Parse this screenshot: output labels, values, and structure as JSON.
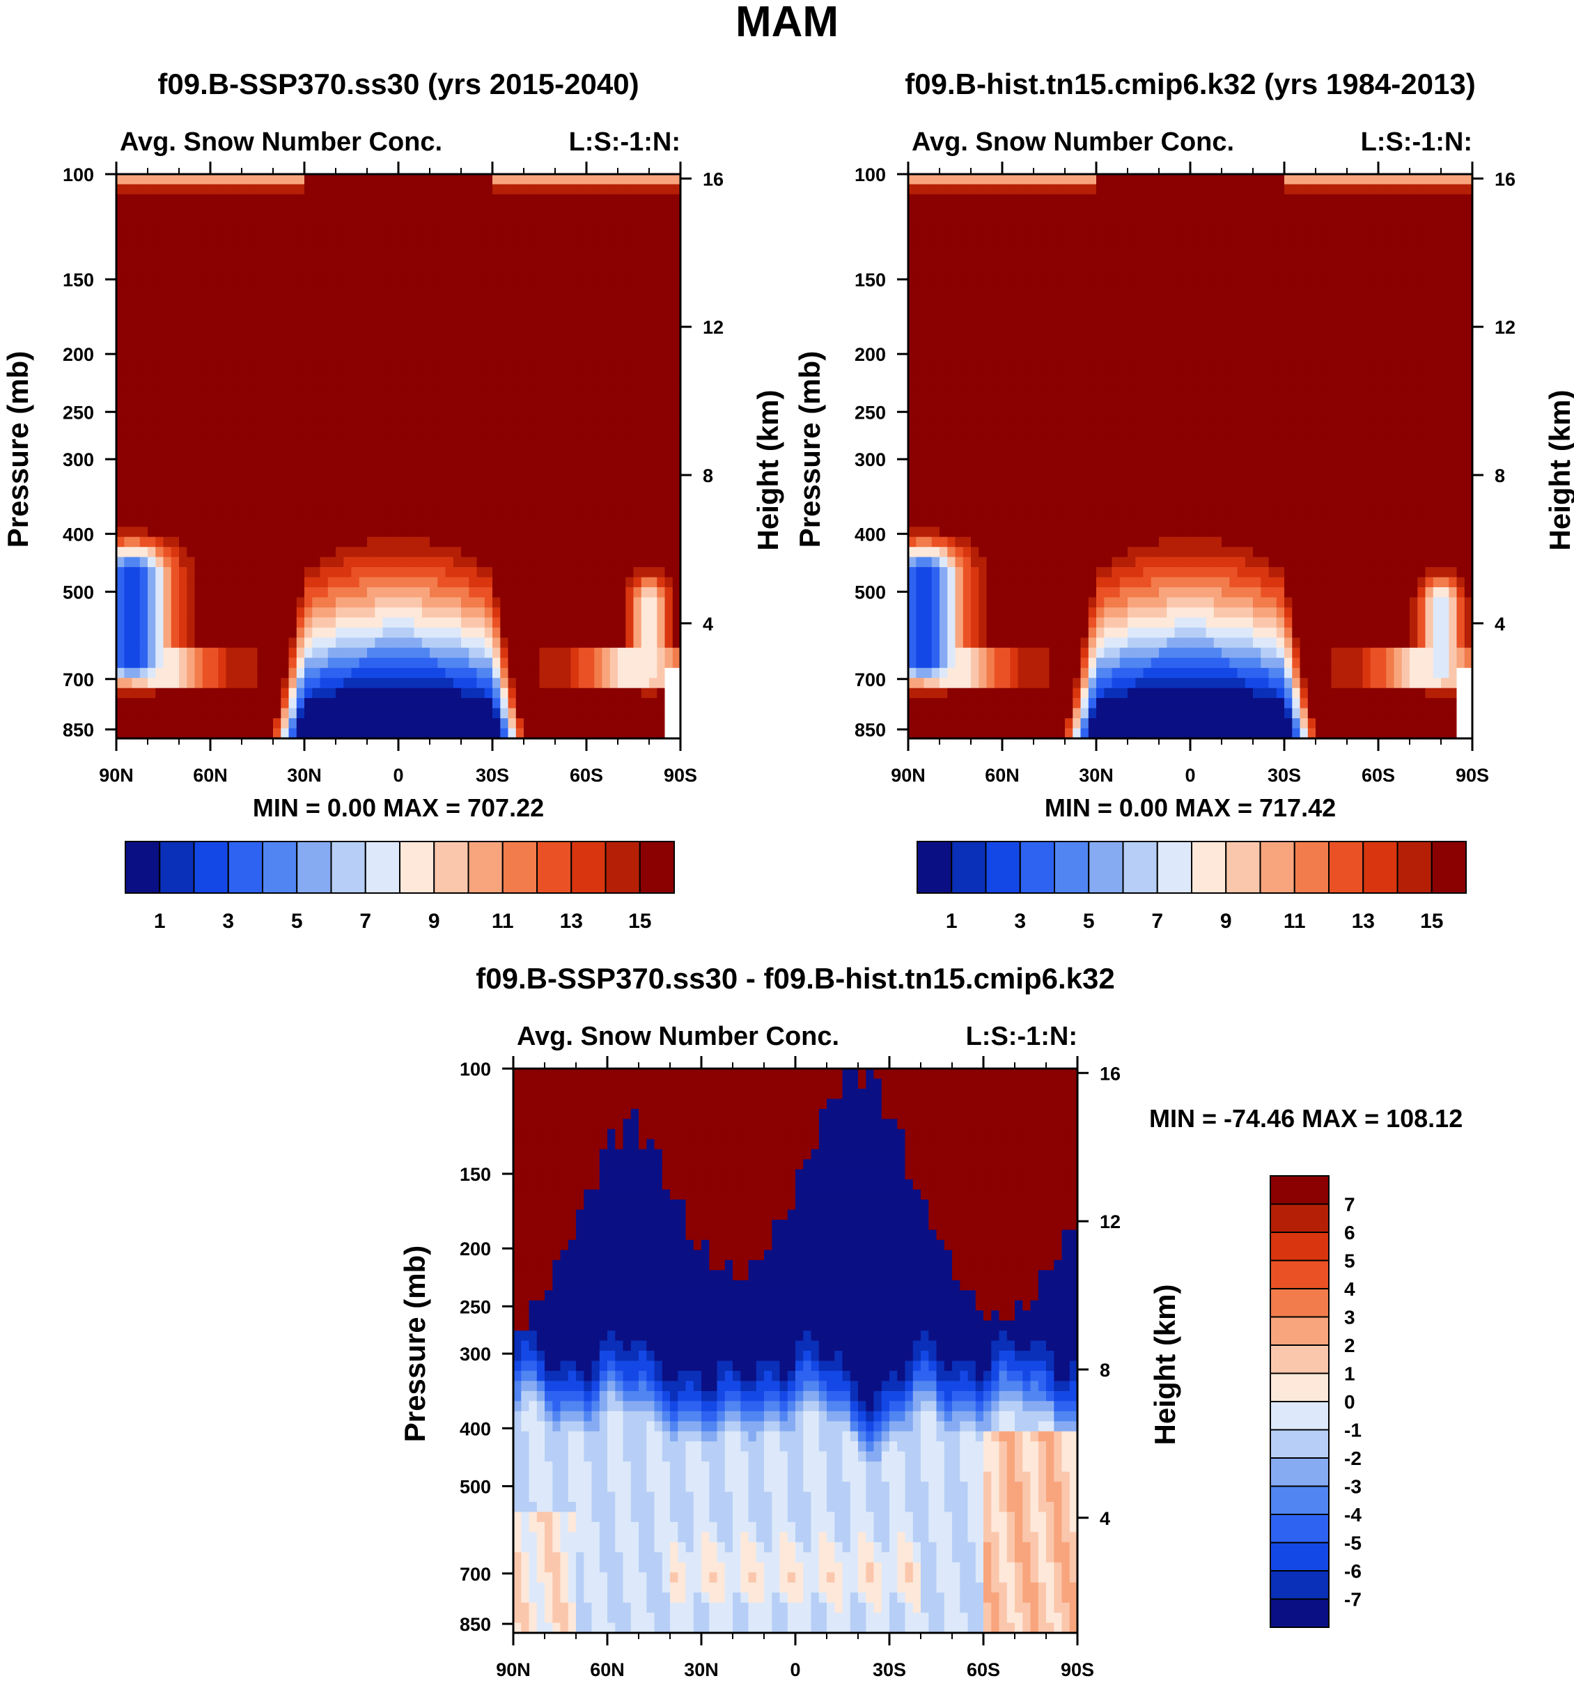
{
  "figure": {
    "title": "MAM"
  },
  "chart_data": [
    {
      "type": "heatmap",
      "title": "f09.B-SSP370.ss30 (yrs 2015-2040)",
      "subtitle_left": "Avg. Snow Number Conc.",
      "subtitle_right": "L:S:-1:N:",
      "xlabel": "",
      "ylabel": "Pressure (mb)",
      "y2label": "Height (km)",
      "x_ticks": [
        "90N",
        "60N",
        "30N",
        "0",
        "30S",
        "60S",
        "90S"
      ],
      "y_ticks": [
        100,
        150,
        200,
        250,
        300,
        400,
        500,
        700,
        850
      ],
      "y2_ticks": [
        16,
        12,
        8,
        4
      ],
      "stats": "MIN =   0.00  MAX = 707.22",
      "colorbar_ticks": [
        "1",
        "3",
        "5",
        "7",
        "9",
        "11",
        "13",
        "15"
      ],
      "levels": [
        1,
        3,
        5,
        7,
        9,
        11,
        13,
        15
      ]
    },
    {
      "type": "heatmap",
      "title": "f09.B-hist.tn15.cmip6.k32 (yrs 1984-2013)",
      "subtitle_left": "Avg. Snow Number Conc.",
      "subtitle_right": "L:S:-1:N:",
      "xlabel": "",
      "ylabel": "Pressure (mb)",
      "y2label": "Height (km)",
      "x_ticks": [
        "90N",
        "60N",
        "30N",
        "0",
        "30S",
        "60S",
        "90S"
      ],
      "y_ticks": [
        100,
        150,
        200,
        250,
        300,
        400,
        500,
        700,
        850
      ],
      "y2_ticks": [
        16,
        12,
        8,
        4
      ],
      "stats": "MIN =   0.00  MAX = 717.42",
      "colorbar_ticks": [
        "1",
        "3",
        "5",
        "7",
        "9",
        "11",
        "13",
        "15"
      ],
      "levels": [
        1,
        3,
        5,
        7,
        9,
        11,
        13,
        15
      ]
    },
    {
      "type": "heatmap",
      "title": "f09.B-SSP370.ss30 - f09.B-hist.tn15.cmip6.k32",
      "subtitle_left": "Avg. Snow Number Conc.",
      "subtitle_right": "L:S:-1:N:",
      "xlabel": "",
      "ylabel": "Pressure (mb)",
      "y2label": "Height (km)",
      "x_ticks": [
        "90N",
        "60N",
        "30N",
        "0",
        "30S",
        "60S",
        "90S"
      ],
      "y_ticks": [
        100,
        150,
        200,
        250,
        300,
        400,
        500,
        700,
        850
      ],
      "y2_ticks": [
        16,
        12,
        8,
        4
      ],
      "stats": "MIN = -74.46  MAX = 108.12",
      "colorbar_ticks": [
        "7",
        "6",
        "5",
        "4",
        "3",
        "2",
        "1",
        "0",
        "-1",
        "-2",
        "-3",
        "-4",
        "-5",
        "-6",
        "-7"
      ],
      "levels": [
        -7,
        -6,
        -5,
        -4,
        -3,
        -2,
        -1,
        0,
        1,
        2,
        3,
        4,
        5,
        6,
        7
      ]
    }
  ],
  "palette": {
    "colors": [
      "#0b0f84",
      "#0a2fb8",
      "#1448e6",
      "#2e63f2",
      "#5085f2",
      "#86abf2",
      "#b7cff6",
      "#dde9fa",
      "#fde8da",
      "#fbc7ac",
      "#f8a57d",
      "#f27c4c",
      "#ea5225",
      "#d9360f",
      "#b51f06",
      "#8b0000"
    ]
  }
}
